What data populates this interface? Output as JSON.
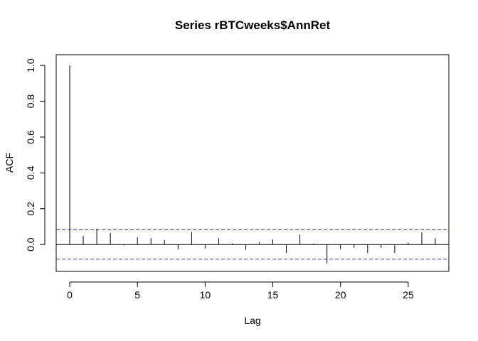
{
  "chart_data": {
    "type": "bar",
    "title": "Series  rBTCweeks$AnnRet",
    "xlabel": "Lag",
    "ylabel": "ACF",
    "xlim": [
      -1,
      28
    ],
    "ylim": [
      -0.15,
      1.06
    ],
    "x_ticks": [
      0,
      5,
      10,
      15,
      20,
      25
    ],
    "y_ticks": [
      0.0,
      0.2,
      0.4,
      0.6,
      0.8,
      1.0
    ],
    "y_tick_labels": [
      "0.0",
      "0.2",
      "0.4",
      "0.6",
      "0.8",
      "1.0"
    ],
    "confidence_band": [
      0.082,
      -0.082
    ],
    "lags": [
      0,
      1,
      2,
      3,
      4,
      5,
      6,
      7,
      8,
      9,
      10,
      11,
      12,
      13,
      14,
      15,
      16,
      17,
      18,
      19,
      20,
      21,
      22,
      23,
      24,
      25,
      26,
      27
    ],
    "acf": [
      1.0,
      0.048,
      0.088,
      0.065,
      -0.005,
      0.04,
      0.035,
      0.025,
      -0.028,
      0.07,
      -0.022,
      0.035,
      0.005,
      -0.03,
      0.012,
      0.028,
      -0.048,
      0.055,
      0.005,
      -0.105,
      -0.025,
      -0.018,
      -0.048,
      -0.018,
      -0.048,
      0.01,
      0.068,
      0.035
    ],
    "grid": false,
    "colors": {
      "bars": "#000000",
      "band": "#3b3bd6",
      "axes": "#000000"
    }
  }
}
